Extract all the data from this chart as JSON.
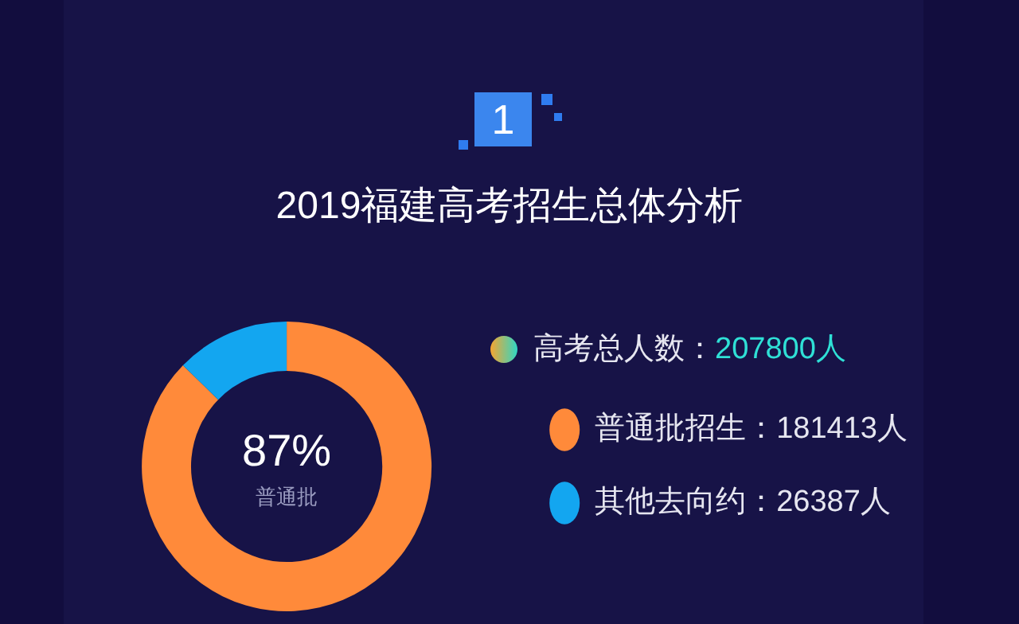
{
  "chart_data": {
    "type": "donut",
    "title": "2019福建高考招生总体分析",
    "categories": [
      "普通批招生",
      "其他去向约"
    ],
    "values": [
      181413,
      26387
    ],
    "colors": [
      "#ff8a3a",
      "#13a6f0"
    ],
    "value_labels": [
      "181413人",
      "26387人"
    ],
    "legend": "right",
    "annotations": [
      "1",
      "87%",
      "普通批",
      "高考总人数：207800人"
    ]
  }
}
